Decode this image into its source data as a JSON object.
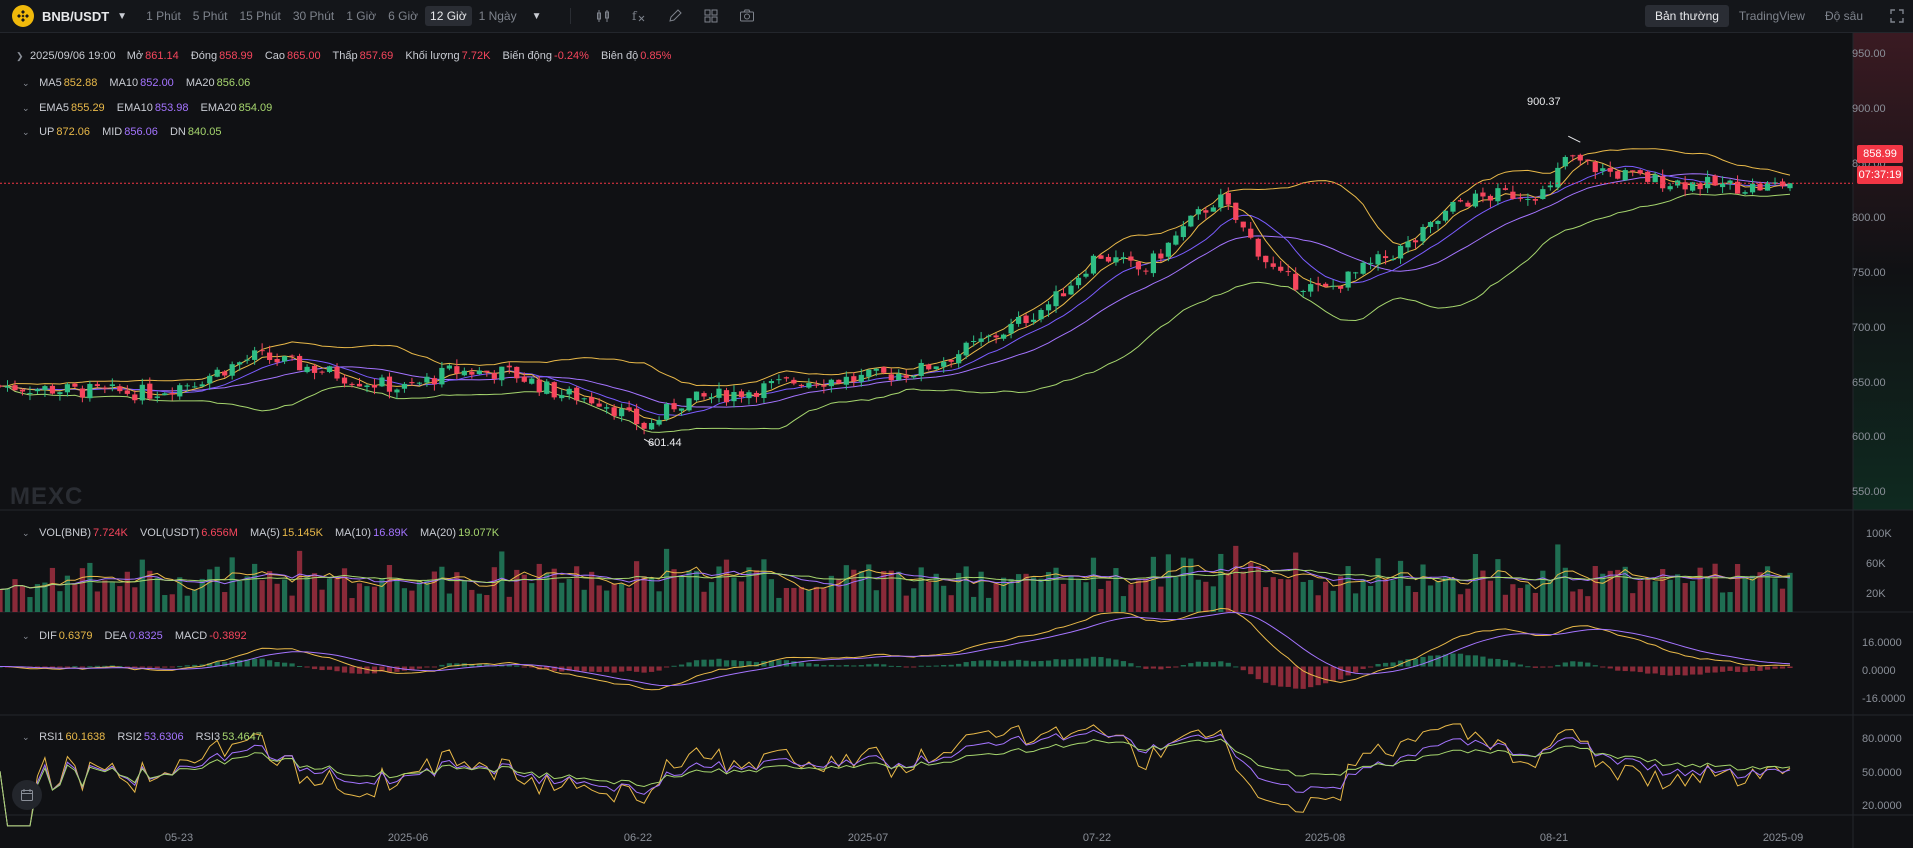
{
  "topbar": {
    "pair": "BNB/USDT",
    "timeframes": [
      "1 Phút",
      "5 Phút",
      "15 Phút",
      "30 Phút",
      "1 Giờ",
      "6 Giờ",
      "12 Giờ",
      "1 Ngày"
    ],
    "active_timeframe": "12 Giờ",
    "views": [
      "Bản thường",
      "TradingView",
      "Độ sâu"
    ],
    "active_view": "Bản thường",
    "tools": [
      "candle-type-icon",
      "indicator-icon",
      "draw-icon",
      "layout-icon",
      "camera-icon"
    ]
  },
  "ohlc": {
    "date": "2025/09/06 19:00",
    "open_label": "Mở",
    "open": "861.14",
    "close_label": "Đóng",
    "close": "858.99",
    "high_label": "Cao",
    "high": "865.00",
    "low_label": "Thấp",
    "low": "857.69",
    "vol_label": "Khối lượng",
    "vol": "7.72K",
    "change_label": "Biến động",
    "change": "-0.24%",
    "amp_label": "Biên độ",
    "amp": "0.85%"
  },
  "ma": {
    "ma5_label": "MA5",
    "ma5": "852.88",
    "ma10_label": "MA10",
    "ma10": "852.00",
    "ma20_label": "MA20",
    "ma20": "856.06"
  },
  "ema": {
    "ema5_label": "EMA5",
    "ema5": "855.29",
    "ema10_label": "EMA10",
    "ema10": "853.98",
    "ema20_label": "EMA20",
    "ema20": "854.09"
  },
  "boll": {
    "up_label": "UP",
    "up": "872.06",
    "mid_label": "MID",
    "mid": "856.06",
    "dn_label": "DN",
    "dn": "840.05"
  },
  "vol": {
    "vb_label": "VOL(BNB)",
    "vb": "7.724K",
    "vu_label": "VOL(USDT)",
    "vu": "6.656M",
    "m5_label": "MA(5)",
    "m5": "15.145K",
    "m10_label": "MA(10)",
    "m10": "16.89K",
    "m20_label": "MA(20)",
    "m20": "19.077K"
  },
  "macd": {
    "dif_label": "DIF",
    "dif": "0.6379",
    "dea_label": "DEA",
    "dea": "0.8325",
    "macd_label": "MACD",
    "macd": "-0.3892"
  },
  "rsi": {
    "r1_label": "RSI1",
    "r1": "60.1638",
    "r2_label": "RSI2",
    "r2": "53.6306",
    "r3_label": "RSI3",
    "r3": "53.4647"
  },
  "price_axis": [
    "950.00",
    "900.00",
    "850.00",
    "800.00",
    "750.00",
    "700.00",
    "650.00",
    "600.00",
    "550.00"
  ],
  "vol_axis": [
    "100K",
    "60K",
    "20K"
  ],
  "macd_axis": [
    "16.0000",
    "0.0000",
    "-16.0000"
  ],
  "rsi_axis": [
    "80.0000",
    "50.0000",
    "20.0000"
  ],
  "x_axis": [
    "05-23",
    "2025-06",
    "06-22",
    "2025-07",
    "07-22",
    "2025-08",
    "08-21",
    "2025-09"
  ],
  "last_price": "858.99",
  "countdown": "07:37:19",
  "high_mark": "900.37",
  "low_mark": "601.44",
  "watermark": "MEXC",
  "colors": {
    "up": "#2ebd85",
    "down": "#f6465d",
    "ma5": "#e9b949",
    "ma10": "#a474ff",
    "ma20": "#a6d66e"
  },
  "chart_data": {
    "type": "candlestick",
    "x_range": [
      "2025-05-10",
      "2025-09-06"
    ],
    "price_ylim": [
      530,
      970
    ],
    "vol_ylim": [
      0,
      120
    ],
    "macd_ylim": [
      -24,
      24
    ],
    "rsi_ylim": [
      10,
      95
    ],
    "last_price": 858.99,
    "high": 900.37,
    "low": 601.44,
    "x_ticks": [
      {
        "label": "05-23",
        "date": "2025-05-23"
      },
      {
        "label": "2025-06",
        "date": "2025-06-01"
      },
      {
        "label": "06-22",
        "date": "2025-06-22"
      },
      {
        "label": "2025-07",
        "date": "2025-07-01"
      },
      {
        "label": "07-22",
        "date": "2025-07-22"
      },
      {
        "label": "2025-08",
        "date": "2025-08-01"
      },
      {
        "label": "08-21",
        "date": "2025-08-21"
      },
      {
        "label": "2025-09",
        "date": "2025-09-01"
      }
    ],
    "close_anchors": [
      {
        "date": "2025-05-10",
        "close": 655
      },
      {
        "date": "2025-05-15",
        "close": 650
      },
      {
        "date": "2025-05-20",
        "close": 648
      },
      {
        "date": "2025-05-23",
        "close": 660
      },
      {
        "date": "2025-05-27",
        "close": 685
      },
      {
        "date": "2025-05-31",
        "close": 672
      },
      {
        "date": "2025-06-03",
        "close": 660
      },
      {
        "date": "2025-06-06",
        "close": 652
      },
      {
        "date": "2025-06-09",
        "close": 670
      },
      {
        "date": "2025-06-13",
        "close": 668
      },
      {
        "date": "2025-06-16",
        "close": 648
      },
      {
        "date": "2025-06-19",
        "close": 640
      },
      {
        "date": "2025-06-22",
        "close": 612
      },
      {
        "date": "2025-06-24",
        "close": 638
      },
      {
        "date": "2025-06-28",
        "close": 648
      },
      {
        "date": "2025-07-02",
        "close": 660
      },
      {
        "date": "2025-07-06",
        "close": 662
      },
      {
        "date": "2025-07-10",
        "close": 670
      },
      {
        "date": "2025-07-13",
        "close": 690
      },
      {
        "date": "2025-07-16",
        "close": 712
      },
      {
        "date": "2025-07-19",
        "close": 740
      },
      {
        "date": "2025-07-22",
        "close": 788
      },
      {
        "date": "2025-07-25",
        "close": 770
      },
      {
        "date": "2025-07-28",
        "close": 818
      },
      {
        "date": "2025-07-30",
        "close": 845
      },
      {
        "date": "2025-08-01",
        "close": 805
      },
      {
        "date": "2025-08-03",
        "close": 765
      },
      {
        "date": "2025-08-06",
        "close": 750
      },
      {
        "date": "2025-08-09",
        "close": 775
      },
      {
        "date": "2025-08-12",
        "close": 800
      },
      {
        "date": "2025-08-15",
        "close": 840
      },
      {
        "date": "2025-08-18",
        "close": 848
      },
      {
        "date": "2025-08-21",
        "close": 850
      },
      {
        "date": "2025-08-22",
        "close": 885
      },
      {
        "date": "2025-08-25",
        "close": 870
      },
      {
        "date": "2025-08-28",
        "close": 862
      },
      {
        "date": "2025-09-01",
        "close": 857
      },
      {
        "date": "2025-09-04",
        "close": 855
      },
      {
        "date": "2025-09-06",
        "close": 858.99
      }
    ]
  }
}
